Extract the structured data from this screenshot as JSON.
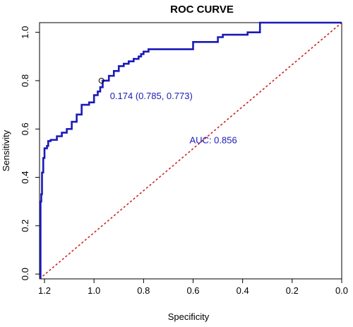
{
  "chart_data": {
    "type": "line",
    "title": "ROC CURVE",
    "xlabel": "Specificity",
    "ylabel": "Sensitivity",
    "x_reversed": true,
    "xlim": [
      1.22,
      0.0
    ],
    "ylim": [
      -0.02,
      1.04
    ],
    "x_ticks": [
      1.2,
      1.0,
      0.8,
      0.6,
      0.4,
      0.2,
      0.0
    ],
    "x_tick_labels": [
      "1.2",
      "1.0",
      "0.8",
      "0.6",
      "0.4",
      "0.2",
      "0.0"
    ],
    "y_ticks": [
      0.0,
      0.2,
      0.4,
      0.6,
      0.8,
      1.0
    ],
    "y_tick_labels": [
      "0.0",
      "0.2",
      "0.4",
      "0.6",
      "0.8",
      "1.0"
    ],
    "grid": false,
    "colors": {
      "curve": "#1a1ab8",
      "diagonal": "#cc2222",
      "annotation": "#1a1ab8"
    },
    "series": [
      {
        "x": [
          1.216,
          1.216,
          1.213,
          1.213,
          1.21,
          1.21,
          1.205,
          1.205,
          1.2,
          1.2,
          1.195,
          1.195,
          1.19,
          1.19,
          1.185,
          1.185,
          1.175,
          1.175,
          1.15,
          1.15,
          1.13,
          1.13,
          1.11,
          1.11,
          1.09,
          1.09,
          1.07,
          1.07,
          1.05,
          1.05,
          1.02,
          1.02,
          1.0,
          1.0,
          0.985,
          0.985,
          0.975,
          0.975,
          0.965,
          0.965,
          0.94,
          0.94,
          0.92,
          0.92,
          0.9,
          0.9,
          0.88,
          0.88,
          0.86,
          0.86,
          0.84,
          0.84,
          0.82,
          0.82,
          0.81,
          0.81,
          0.8,
          0.8,
          0.78,
          0.78,
          0.6,
          0.6,
          0.58,
          0.58,
          0.5,
          0.5,
          0.48,
          0.48,
          0.38,
          0.38,
          0.33,
          0.33,
          0.0
        ],
        "y": [
          -0.02,
          0.3,
          0.3,
          0.33,
          0.33,
          0.42,
          0.42,
          0.48,
          0.48,
          0.52,
          0.52,
          0.52,
          0.52,
          0.53,
          0.53,
          0.55,
          0.55,
          0.555,
          0.555,
          0.57,
          0.57,
          0.585,
          0.585,
          0.6,
          0.6,
          0.63,
          0.63,
          0.66,
          0.66,
          0.7,
          0.7,
          0.71,
          0.71,
          0.74,
          0.74,
          0.755,
          0.755,
          0.773,
          0.773,
          0.8,
          0.8,
          0.82,
          0.82,
          0.84,
          0.84,
          0.86,
          0.86,
          0.87,
          0.87,
          0.88,
          0.88,
          0.89,
          0.89,
          0.9,
          0.9,
          0.91,
          0.91,
          0.92,
          0.92,
          0.93,
          0.93,
          0.96,
          0.96,
          0.96,
          0.96,
          0.98,
          0.98,
          0.99,
          0.99,
          1.0,
          1.0,
          1.04,
          1.04
        ]
      }
    ],
    "diagonal": {
      "x": [
        1.22,
        0.0
      ],
      "y": [
        -0.02,
        1.04
      ]
    },
    "threshold_point": {
      "x": 0.97,
      "y": 0.8,
      "label": "0.174 (0.785, 0.773)"
    },
    "auc_label": "AUC: 0.856",
    "auc_label_pos": {
      "x": 0.6,
      "y": 0.555
    }
  }
}
